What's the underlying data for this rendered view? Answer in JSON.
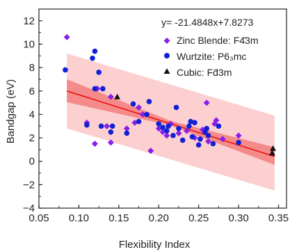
{
  "colors": {
    "zinc_blende": "#8a1fe6",
    "wurtzite": "#1020d8",
    "cubic": "#111111",
    "fit_line": "#e81010",
    "confidence_band": "#f58a8a",
    "prediction_band": "#fcd0d0"
  },
  "chart_data": {
    "type": "scatter",
    "xlabel": "Flexibility Index",
    "ylabel": "Bandgap (eV)",
    "xlim": [
      0.05,
      0.36
    ],
    "ylim": [
      -4,
      13
    ],
    "xticks": [
      "0.05",
      "0.10",
      "0.15",
      "0.20",
      "0.25",
      "0.30",
      "0.35"
    ],
    "xtick_values": [
      0.05,
      0.1,
      0.15,
      0.2,
      0.25,
      0.3,
      0.35
    ],
    "yticks": [
      "−4",
      "−2",
      "0",
      "2",
      "4",
      "6",
      "8",
      "10",
      "12"
    ],
    "ytick_values": [
      -4,
      -2,
      0,
      2,
      4,
      6,
      8,
      10,
      12
    ],
    "grid": false,
    "legend_position": "top-right",
    "annotation": "y= -21.4848x+7.8273",
    "fit": {
      "slope": -21.4848,
      "intercept": 7.8273,
      "x_range": [
        0.085,
        0.345
      ]
    },
    "confidence_band": {
      "x": [
        0.085,
        0.215,
        0.345
      ],
      "upper": [
        7.0,
        3.45,
        1.2
      ],
      "lower": [
        5.05,
        3.05,
        -0.3
      ]
    },
    "prediction_band": {
      "x": [
        0.085,
        0.345
      ],
      "upper": [
        9.2,
        3.9
      ],
      "lower": [
        2.8,
        -2.5
      ]
    },
    "series": [
      {
        "name": "Zinc Blende: F4̄3m",
        "marker": "diamond",
        "points": [
          {
            "x": 0.085,
            "y": 10.6
          },
          {
            "x": 0.11,
            "y": 3.3
          },
          {
            "x": 0.12,
            "y": 1.5
          },
          {
            "x": 0.123,
            "y": 6.2
          },
          {
            "x": 0.135,
            "y": 3.0
          },
          {
            "x": 0.14,
            "y": 5.5
          },
          {
            "x": 0.14,
            "y": 1.6
          },
          {
            "x": 0.16,
            "y": 2.8
          },
          {
            "x": 0.17,
            "y": 3.3
          },
          {
            "x": 0.175,
            "y": 4.6
          },
          {
            "x": 0.18,
            "y": 4.0
          },
          {
            "x": 0.19,
            "y": 0.9
          },
          {
            "x": 0.2,
            "y": 2.8
          },
          {
            "x": 0.205,
            "y": 2.5
          },
          {
            "x": 0.21,
            "y": 2.2
          },
          {
            "x": 0.215,
            "y": 3.2
          },
          {
            "x": 0.225,
            "y": 2.4
          },
          {
            "x": 0.235,
            "y": 2.6
          },
          {
            "x": 0.245,
            "y": 2.0
          },
          {
            "x": 0.255,
            "y": 2.7
          },
          {
            "x": 0.26,
            "y": 5.0
          },
          {
            "x": 0.262,
            "y": 1.7
          },
          {
            "x": 0.27,
            "y": 3.2
          },
          {
            "x": 0.272,
            "y": 3.5
          },
          {
            "x": 0.28,
            "y": 1.9
          },
          {
            "x": 0.3,
            "y": 2.2
          }
        ]
      },
      {
        "name": "Wurtzite: P6₃mc",
        "marker": "circle",
        "points": [
          {
            "x": 0.083,
            "y": 7.8
          },
          {
            "x": 0.11,
            "y": 3.1
          },
          {
            "x": 0.117,
            "y": 8.8
          },
          {
            "x": 0.12,
            "y": 6.2
          },
          {
            "x": 0.12,
            "y": 9.4
          },
          {
            "x": 0.125,
            "y": 7.6
          },
          {
            "x": 0.128,
            "y": 3.0
          },
          {
            "x": 0.13,
            "y": 6.2
          },
          {
            "x": 0.14,
            "y": 2.5
          },
          {
            "x": 0.142,
            "y": 3.0
          },
          {
            "x": 0.16,
            "y": 2.4
          },
          {
            "x": 0.168,
            "y": 4.9
          },
          {
            "x": 0.175,
            "y": 3.4
          },
          {
            "x": 0.185,
            "y": 4.0
          },
          {
            "x": 0.188,
            "y": 5.1
          },
          {
            "x": 0.2,
            "y": 3.2
          },
          {
            "x": 0.205,
            "y": 2.9
          },
          {
            "x": 0.21,
            "y": 2.6
          },
          {
            "x": 0.212,
            "y": 3.0
          },
          {
            "x": 0.218,
            "y": 2.2
          },
          {
            "x": 0.222,
            "y": 4.6
          },
          {
            "x": 0.225,
            "y": 2.8
          },
          {
            "x": 0.23,
            "y": 1.8
          },
          {
            "x": 0.238,
            "y": 3.0
          },
          {
            "x": 0.24,
            "y": 3.4
          },
          {
            "x": 0.242,
            "y": 2.1
          },
          {
            "x": 0.245,
            "y": 3.3
          },
          {
            "x": 0.25,
            "y": 1.4
          },
          {
            "x": 0.252,
            "y": 1.9
          },
          {
            "x": 0.258,
            "y": 2.5
          },
          {
            "x": 0.26,
            "y": 2.8
          },
          {
            "x": 0.262,
            "y": 2.2
          },
          {
            "x": 0.268,
            "y": 1.5
          },
          {
            "x": 0.275,
            "y": 3.0
          },
          {
            "x": 0.3,
            "y": 1.6
          }
        ]
      },
      {
        "name": "Cubic: Fd̄3m",
        "marker": "triangle",
        "points": [
          {
            "x": 0.148,
            "y": 5.5
          },
          {
            "x": 0.343,
            "y": 1.1
          },
          {
            "x": 0.342,
            "y": 0.7
          }
        ]
      }
    ]
  }
}
